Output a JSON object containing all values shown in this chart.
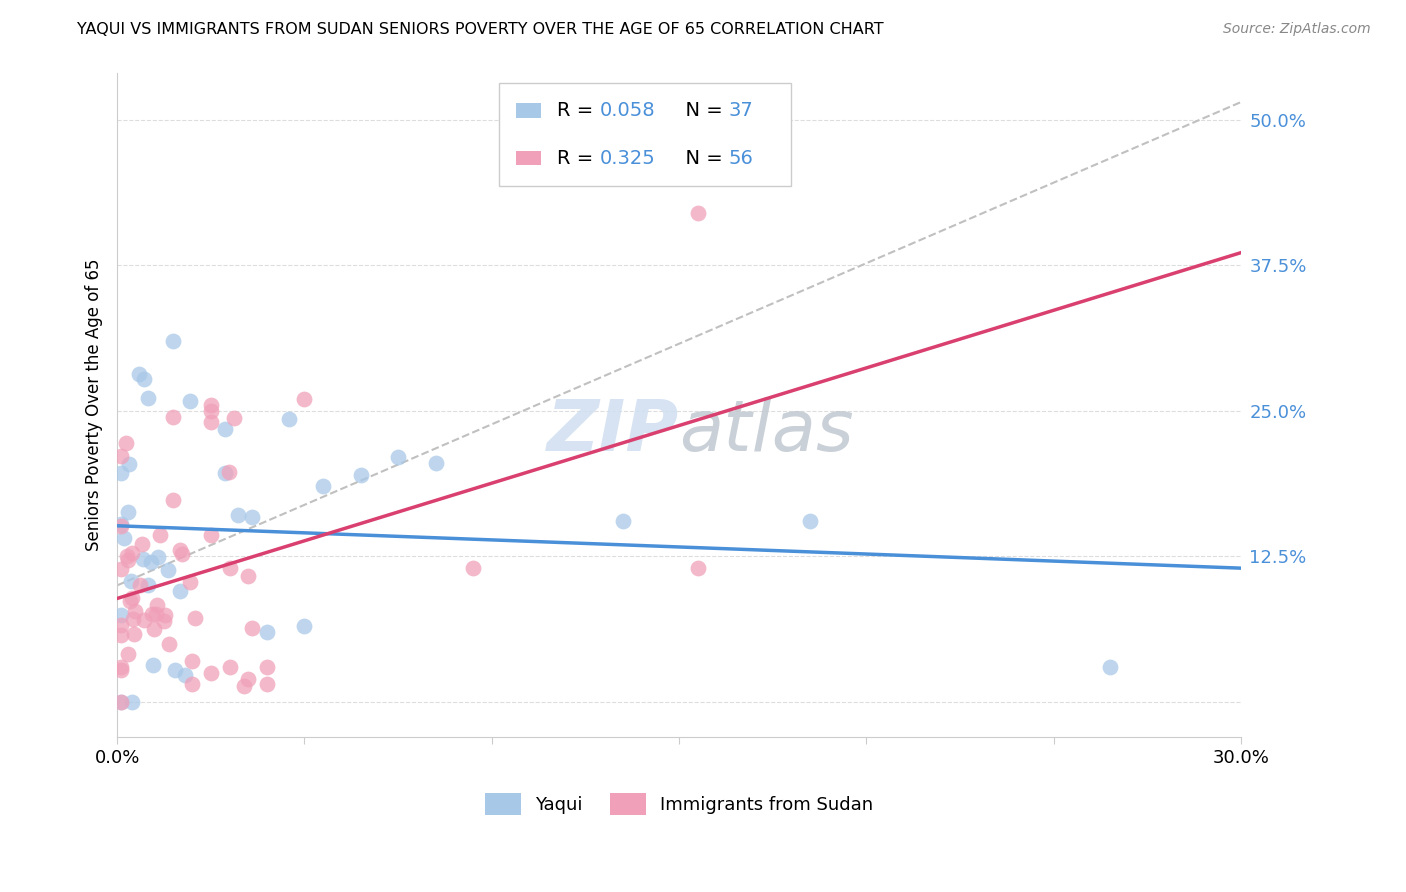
{
  "title": "YAQUI VS IMMIGRANTS FROM SUDAN SENIORS POVERTY OVER THE AGE OF 65 CORRELATION CHART",
  "source": "Source: ZipAtlas.com",
  "ylabel": "Seniors Poverty Over the Age of 65",
  "xlim": [
    0.0,
    0.3
  ],
  "ylim": [
    -0.03,
    0.54
  ],
  "series1_color": "#A8C8E8",
  "series2_color": "#F0A0B8",
  "trend1_color": "#4A90D9",
  "trend2_color": "#D94070",
  "trend_dashed_color": "#C0C0C0",
  "legend_R1": "0.058",
  "legend_N1": "37",
  "legend_R2": "0.325",
  "legend_N2": "56",
  "legend_text_color": "#4A90D9",
  "background_color": "#FFFFFF",
  "grid_color": "#DDDDDD",
  "ytick_vals": [
    0.0,
    0.125,
    0.25,
    0.375,
    0.5
  ],
  "ytick_labels": [
    "",
    "12.5%",
    "25.0%",
    "37.5%",
    "50.0%"
  ],
  "xtick_vals": [
    0.0,
    0.05,
    0.1,
    0.15,
    0.2,
    0.25,
    0.3
  ],
  "xtick_labels": [
    "0.0%",
    "",
    "",
    "",
    "",
    "",
    "30.0%"
  ]
}
